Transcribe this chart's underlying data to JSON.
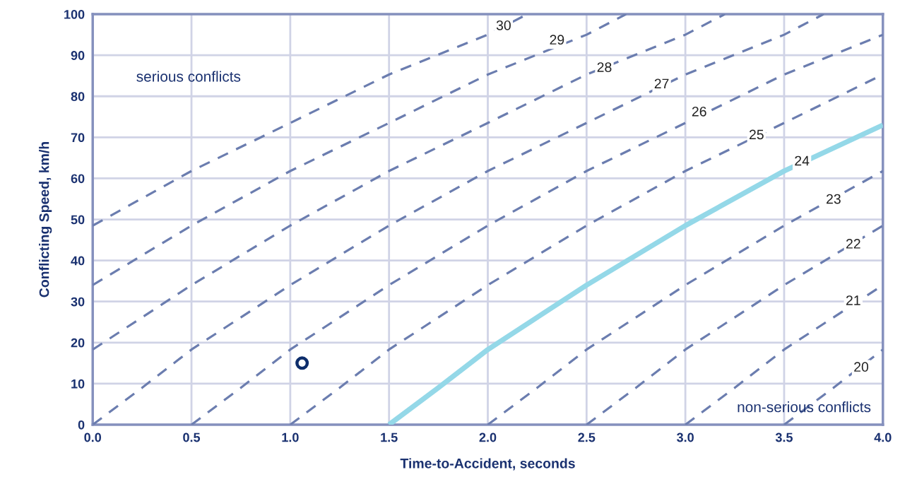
{
  "chart_data": {
    "type": "line",
    "xlabel": "Time-to-Accident, seconds",
    "ylabel": "Conflicting Speed, km/h",
    "xlim": [
      0,
      4
    ],
    "ylim": [
      0,
      100
    ],
    "xticks": [
      {
        "value": 0,
        "label": "0.0"
      },
      0.5,
      {
        "value": 1,
        "label": "1.0"
      },
      1.5,
      {
        "value": 2,
        "label": "2.0"
      },
      2.5,
      {
        "value": 3,
        "label": "3.0"
      },
      3.5,
      {
        "value": 4,
        "label": "4.0"
      }
    ],
    "yticks": [
      0,
      10,
      20,
      30,
      40,
      50,
      60,
      70,
      80,
      90,
      100
    ],
    "grid": true,
    "legend": false,
    "series": [
      {
        "color": "#6b7daf",
        "line_style": "dashed",
        "x": [
          0,
          0.5,
          1,
          1.5,
          2,
          2.2
        ],
        "values": [
          48.5,
          61.8,
          73.5,
          85.3,
          95,
          100
        ]
      },
      {
        "color": "#6b7daf",
        "line_style": "dashed",
        "x": [
          0,
          0.5,
          1,
          1.5,
          2,
          2.5,
          2.7
        ],
        "values": [
          34,
          48.5,
          61.8,
          73.5,
          85.3,
          95,
          100
        ]
      },
      {
        "color": "#6b7daf",
        "line_style": "dashed",
        "x": [
          0,
          0.5,
          1,
          1.5,
          2,
          2.5,
          3,
          3.2
        ],
        "values": [
          18.3,
          34,
          48.5,
          61.8,
          73.5,
          85.3,
          95,
          100
        ]
      },
      {
        "color": "#6b7daf",
        "line_style": "dashed",
        "x": [
          0,
          0.25,
          0.5,
          1,
          1.5,
          2,
          2.5,
          3,
          3.5,
          3.7
        ],
        "values": [
          0,
          9,
          18.3,
          34,
          48.5,
          61.8,
          73.5,
          85.3,
          95,
          100
        ]
      },
      {
        "color": "#6b7daf",
        "line_style": "dashed",
        "x": [
          0.5,
          0.75,
          1,
          1.5,
          2,
          2.5,
          3,
          3.5,
          4
        ],
        "values": [
          0,
          9,
          18.3,
          34,
          48.5,
          61.8,
          73.5,
          85.3,
          95
        ]
      },
      {
        "color": "#6b7daf",
        "line_style": "dashed",
        "x": [
          1,
          1.25,
          1.5,
          2,
          2.5,
          3,
          3.5,
          4
        ],
        "values": [
          0,
          9,
          18.3,
          34,
          48.5,
          61.8,
          73.5,
          85.3
        ]
      },
      {
        "color": "#94d8e8",
        "line_style": "solid",
        "x": [
          1.5,
          1.75,
          2,
          2.5,
          3,
          3.5,
          4
        ],
        "values": [
          0,
          9,
          18.3,
          34,
          48.5,
          61.8,
          73
        ]
      },
      {
        "color": "#6b7daf",
        "line_style": "dashed",
        "x": [
          2,
          2.25,
          2.5,
          3,
          3.5,
          4
        ],
        "values": [
          0,
          9,
          18.3,
          34,
          48.5,
          61.8
        ]
      },
      {
        "color": "#6b7daf",
        "line_style": "dashed",
        "x": [
          2.5,
          2.75,
          3,
          3.5,
          4
        ],
        "values": [
          0,
          9,
          18.3,
          34,
          48.5
        ]
      },
      {
        "color": "#6b7daf",
        "line_style": "dashed",
        "x": [
          3,
          3.25,
          3.5,
          4
        ],
        "values": [
          0,
          9,
          18.3,
          34
        ]
      },
      {
        "color": "#6b7daf",
        "line_style": "dashed",
        "x": [
          3.5,
          3.75,
          4
        ],
        "values": [
          0,
          9,
          18.3
        ]
      },
      {
        "type": "scatter",
        "color": "#0d2d6b",
        "marker": "circle",
        "x": [
          1.06
        ],
        "values": [
          15
        ]
      }
    ],
    "annotations": [
      "serious conflicts",
      "non-serious conflicts",
      {
        "text": "30",
        "x": 2.08,
        "y": 97
      },
      {
        "text": "29",
        "x": 2.35,
        "y": 93.5
      },
      {
        "text": "28",
        "x": 2.59,
        "y": 86.8
      },
      {
        "text": "27",
        "x": 2.88,
        "y": 82.8
      },
      {
        "text": "26",
        "x": 3.07,
        "y": 76
      },
      {
        "text": "25",
        "x": 3.36,
        "y": 70.4
      },
      {
        "text": "24",
        "x": 3.59,
        "y": 64
      },
      {
        "text": "23",
        "x": 3.75,
        "y": 54.7
      },
      {
        "text": "22",
        "x": 3.85,
        "y": 43.8
      },
      {
        "text": "21",
        "x": 3.85,
        "y": 30
      },
      {
        "text": "20",
        "x": 3.89,
        "y": 13.8
      }
    ]
  }
}
